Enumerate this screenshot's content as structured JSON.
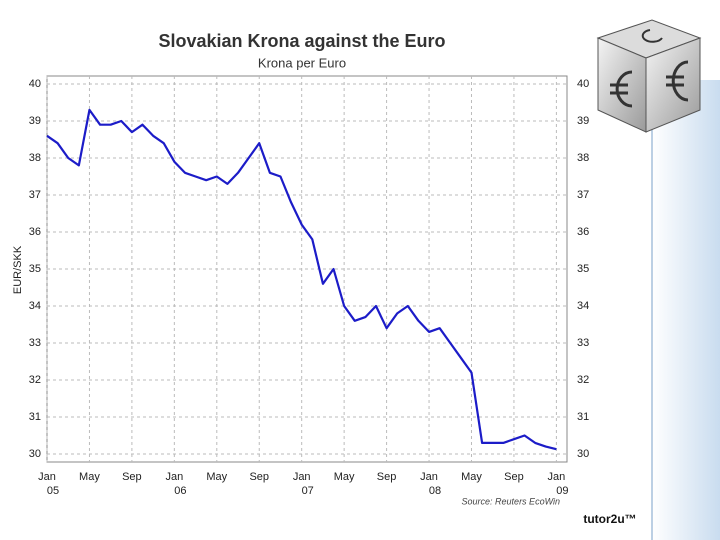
{
  "chart_data": {
    "type": "line",
    "title": "Slovakian Krona against the Euro",
    "subtitle": "Krona per Euro",
    "y_label": "EUR/SKK",
    "source": "Source: Reuters EcoWin",
    "footer": "tutor2u™",
    "x": [
      "2005-01",
      "2005-02",
      "2005-03",
      "2005-04",
      "2005-05",
      "2005-06",
      "2005-07",
      "2005-08",
      "2005-09",
      "2005-10",
      "2005-11",
      "2005-12",
      "2006-01",
      "2006-02",
      "2006-03",
      "2006-04",
      "2006-05",
      "2006-06",
      "2006-07",
      "2006-08",
      "2006-09",
      "2006-10",
      "2006-11",
      "2006-12",
      "2007-01",
      "2007-02",
      "2007-03",
      "2007-04",
      "2007-05",
      "2007-06",
      "2007-07",
      "2007-08",
      "2007-09",
      "2007-10",
      "2007-11",
      "2007-12",
      "2008-01",
      "2008-02",
      "2008-03",
      "2008-04",
      "2008-05",
      "2008-06",
      "2008-07",
      "2008-08",
      "2008-09",
      "2008-10",
      "2008-11",
      "2008-12",
      "2009-01"
    ],
    "series": [
      {
        "name": "EUR/SKK",
        "color": "#1c1cc8",
        "values": [
          38.6,
          38.4,
          38.0,
          37.8,
          39.3,
          38.9,
          38.9,
          39.0,
          38.7,
          38.9,
          38.6,
          38.4,
          37.9,
          37.6,
          37.5,
          37.4,
          37.5,
          37.3,
          37.6,
          38.0,
          38.4,
          37.6,
          37.5,
          36.8,
          36.2,
          35.8,
          34.6,
          35.0,
          34.0,
          33.6,
          33.7,
          34.0,
          33.4,
          33.8,
          34.0,
          33.6,
          33.3,
          33.4,
          33.0,
          32.6,
          32.2,
          30.3,
          30.3,
          30.3,
          30.4,
          30.5,
          30.3,
          30.2,
          30.13
        ]
      }
    ],
    "xlim": [
      "2005-01",
      "2009-02"
    ],
    "xticks": [
      {
        "value": "2005-01",
        "label": "Jan"
      },
      {
        "value": "2005-05",
        "label": "May"
      },
      {
        "value": "2005-09",
        "label": "Sep"
      },
      {
        "value": "2006-01",
        "label": "Jan"
      },
      {
        "value": "2006-05",
        "label": "May"
      },
      {
        "value": "2006-09",
        "label": "Sep"
      },
      {
        "value": "2007-01",
        "label": "Jan"
      },
      {
        "value": "2007-05",
        "label": "May"
      },
      {
        "value": "2007-09",
        "label": "Sep"
      },
      {
        "value": "2008-01",
        "label": "Jan"
      },
      {
        "value": "2008-05",
        "label": "May"
      },
      {
        "value": "2008-09",
        "label": "Sep"
      },
      {
        "value": "2009-01",
        "label": "Jan"
      }
    ],
    "xtick_years": [
      {
        "value": "2005-01",
        "label": "05"
      },
      {
        "value": "2006-01",
        "label": "06"
      },
      {
        "value": "2007-01",
        "label": "07"
      },
      {
        "value": "2008-01",
        "label": "08"
      },
      {
        "value": "2009-01",
        "label": "09"
      }
    ],
    "ylim": [
      30,
      40
    ],
    "yticks": [
      30,
      31,
      32,
      33,
      34,
      35,
      36,
      37,
      38,
      39,
      40
    ],
    "grid": true
  }
}
